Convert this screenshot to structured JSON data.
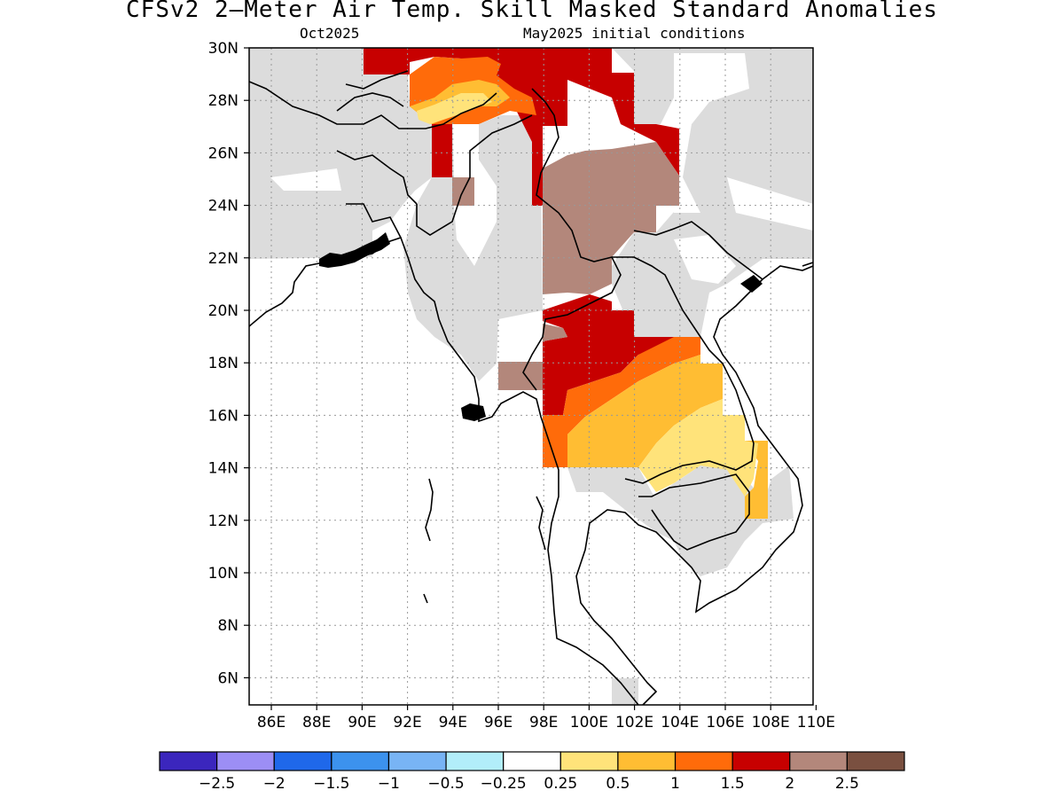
{
  "title": "CFSv2 2—Meter Air Temp. Skill Masked Standard Anomalies",
  "subtitle_left": "Oct2025",
  "subtitle_right": "May2025 initial conditions",
  "lat_labels": [
    "30N",
    "28N",
    "26N",
    "24N",
    "22N",
    "20N",
    "18N",
    "16N",
    "14N",
    "12N",
    "10N",
    "8N",
    "6N"
  ],
  "lon_labels": [
    "86E",
    "88E",
    "90E",
    "92E",
    "94E",
    "96E",
    "98E",
    "100E",
    "102E",
    "104E",
    "106E",
    "108E",
    "110E"
  ],
  "colorbar": {
    "colors": [
      "#3b26bd",
      "#9c8ef5",
      "#1f68ea",
      "#3c92ee",
      "#78b4f5",
      "#b2eefa",
      "#ffffff",
      "#ffe37a",
      "#ffbd33",
      "#ff6b0a",
      "#c70000",
      "#b3877b",
      "#7a5040"
    ],
    "labels": [
      "−2.5",
      "−2",
      "−1.5",
      "−1",
      "−0.5",
      "−0.25",
      "0.25",
      "0.5",
      "1",
      "1.5",
      "2",
      "2.5"
    ]
  },
  "map_colors": {
    "masked": "#dcdcdc",
    "dark_red": "#c70000",
    "brown": "#b3877b",
    "orange": "#ff6b0a",
    "light_orange": "#ffbd33",
    "yellow": "#ffe37a",
    "coast": "#000000"
  }
}
